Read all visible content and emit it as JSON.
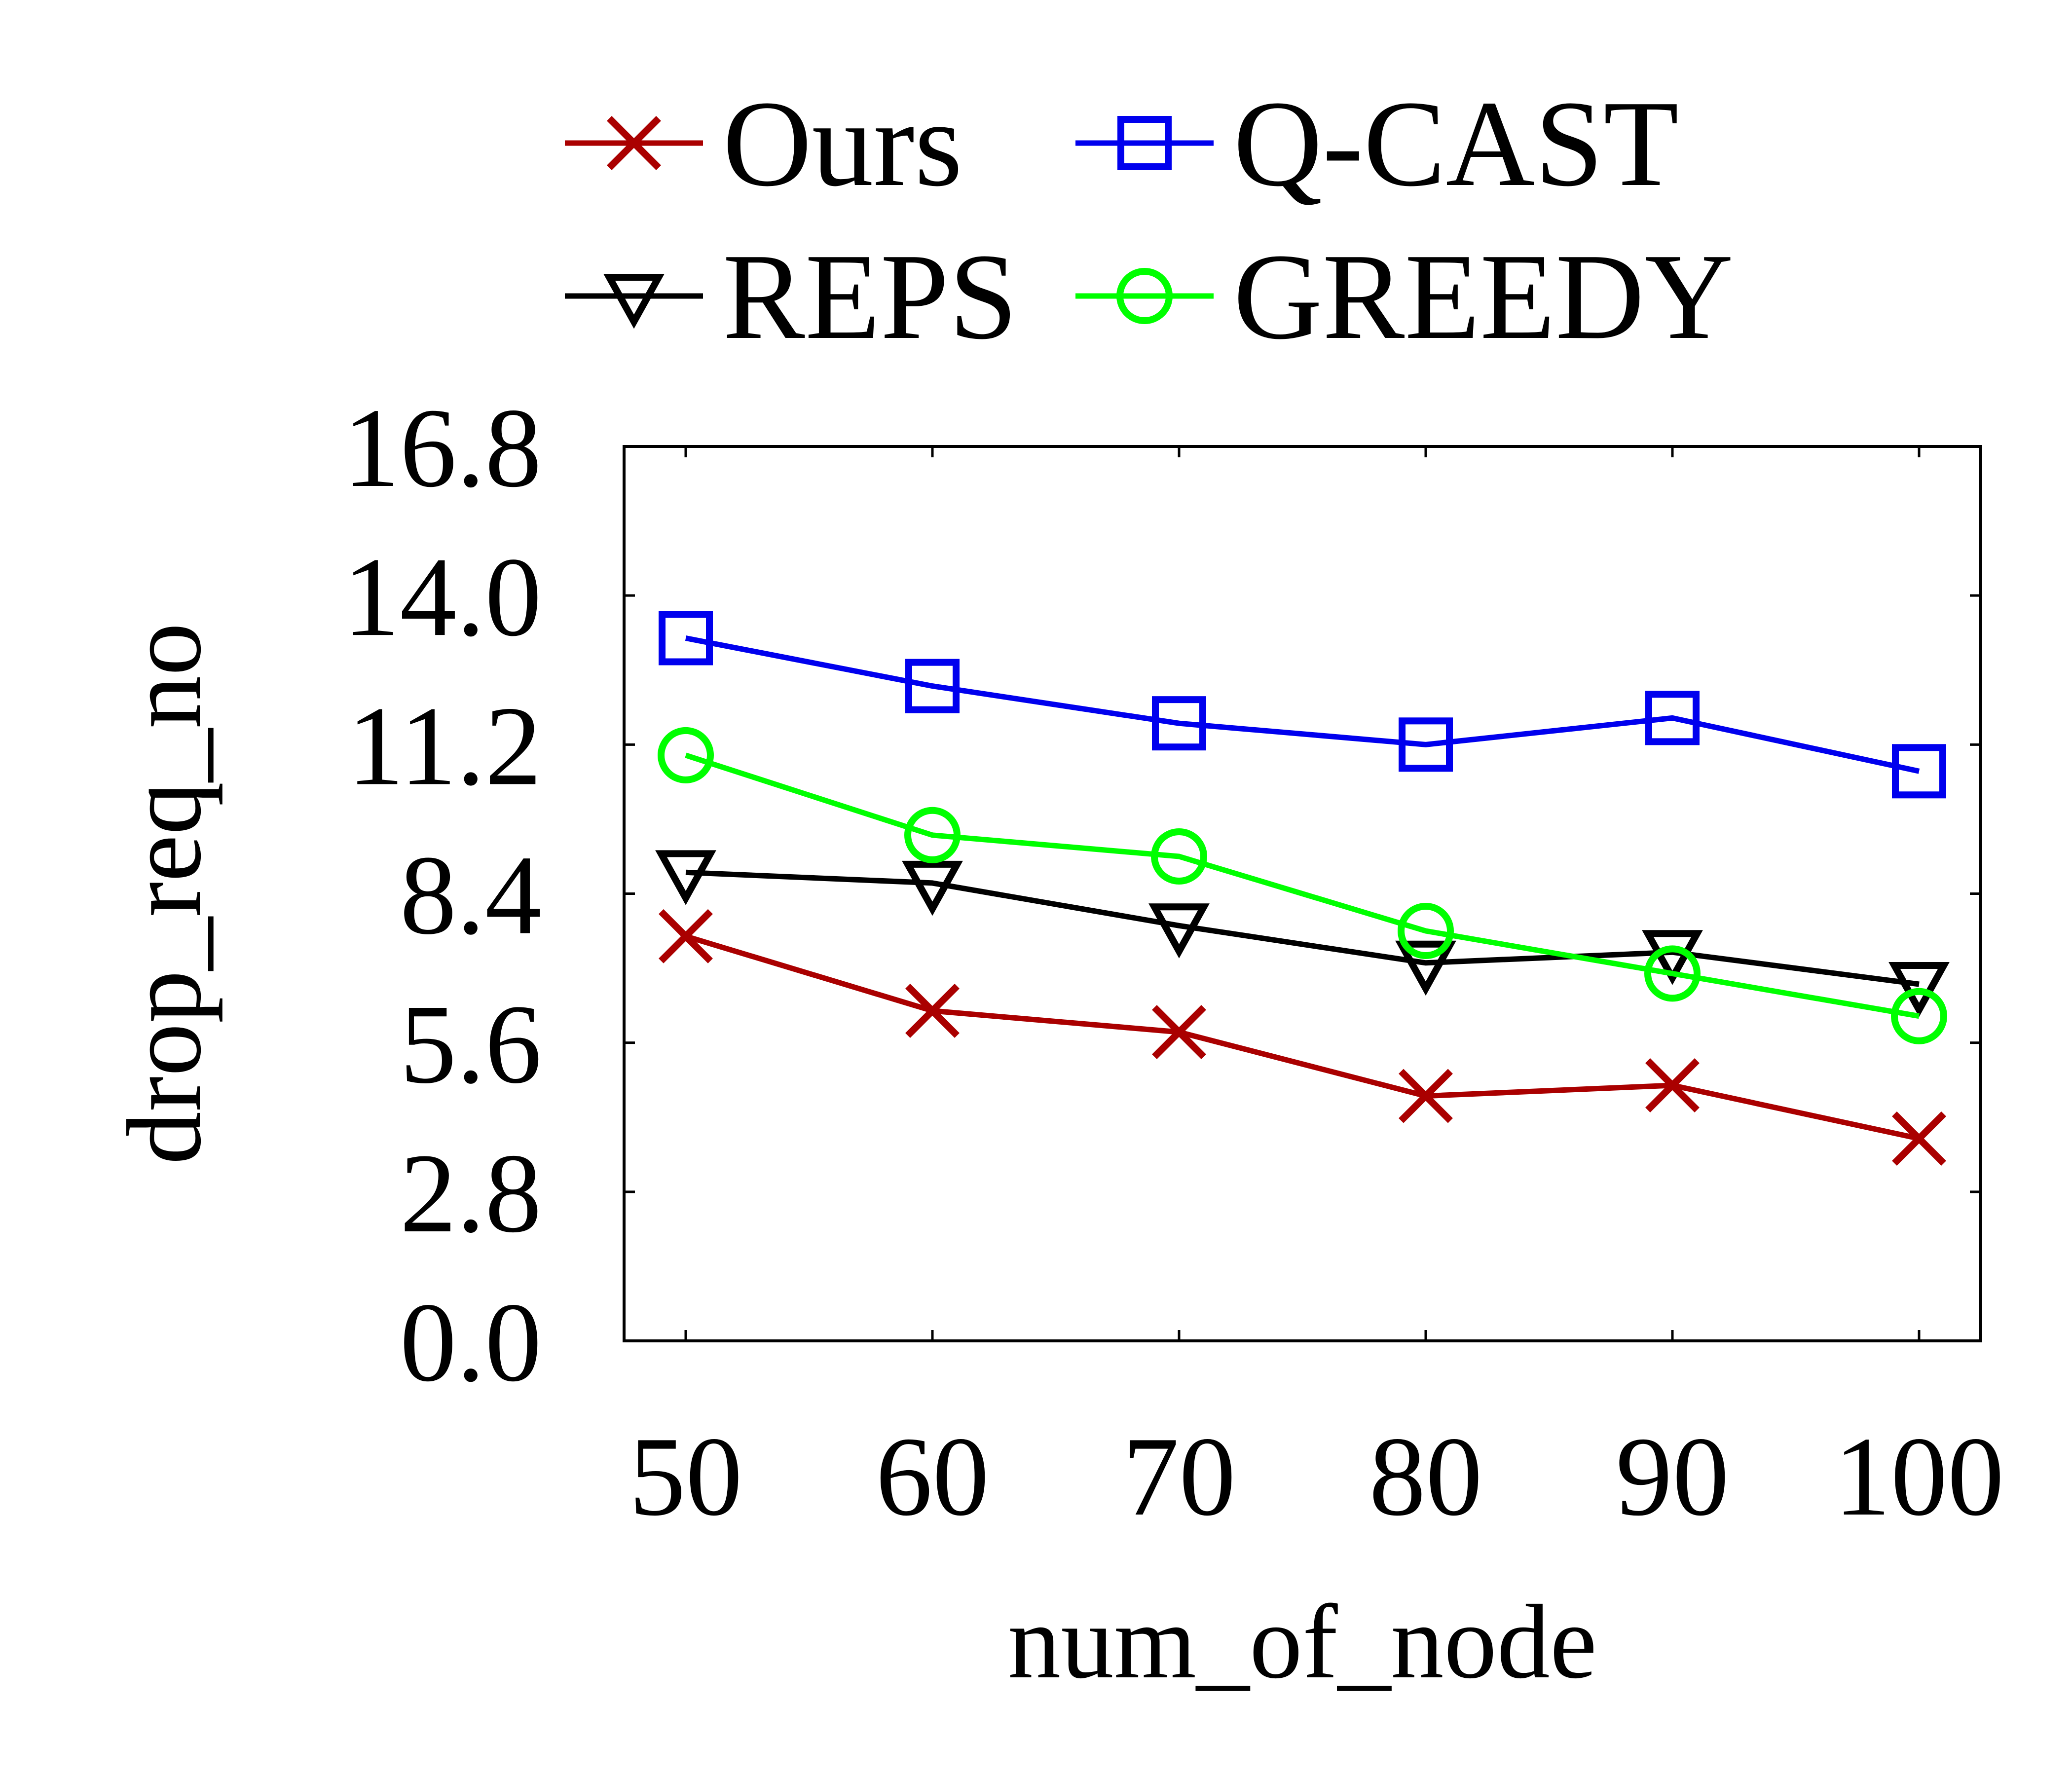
{
  "chart_data": {
    "type": "line",
    "title": "",
    "xlabel": "num_of_node",
    "ylabel": "drop_req_no",
    "x": [
      50,
      60,
      70,
      80,
      90,
      100
    ],
    "xlim": [
      47.5,
      102.5
    ],
    "ylim": [
      0.0,
      16.8
    ],
    "yticks": [
      "0.0",
      "2.8",
      "5.6",
      "8.4",
      "11.2",
      "14.0",
      "16.8"
    ],
    "xticks": [
      "50",
      "60",
      "70",
      "80",
      "90",
      "100"
    ],
    "grid": false,
    "legend_position": "top",
    "series": [
      {
        "name": "Ours",
        "color": "#aa0000",
        "marker": "x",
        "values": [
          7.6,
          6.2,
          5.8,
          4.6,
          4.8,
          3.8
        ]
      },
      {
        "name": "Q-CAST",
        "color": "#0000ee",
        "marker": "square",
        "values": [
          13.2,
          12.3,
          11.6,
          11.2,
          11.7,
          10.7
        ]
      },
      {
        "name": "REPS",
        "color": "#000000",
        "marker": "triangle-down",
        "values": [
          8.8,
          8.6,
          7.8,
          7.1,
          7.3,
          6.7
        ]
      },
      {
        "name": "GREEDY",
        "color": "#00ff00",
        "marker": "circle",
        "values": [
          11.0,
          9.5,
          9.1,
          7.7,
          6.9,
          6.1
        ]
      }
    ]
  }
}
